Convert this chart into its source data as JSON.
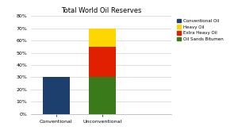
{
  "title": "Total World Oil Reserves",
  "categories": [
    "Conventional",
    "Unconventional"
  ],
  "conventional_value": 30,
  "unconventional_segments": {
    "Oil Sands Bitumen": 30,
    "Extra Heavy Oil": 25,
    "Heavy Oil": 15
  },
  "colors": {
    "Conventional Oil": "#1c3f6e",
    "Heavy Oil": "#ffd700",
    "Extra Heavy Oil": "#e02000",
    "Oil Sands Bitumen": "#3a7a1a"
  },
  "ylim": [
    0,
    80
  ],
  "yticks": [
    0,
    10,
    20,
    30,
    40,
    50,
    60,
    70,
    80
  ],
  "ytick_labels": [
    "0%",
    "10%",
    "20%",
    "30%",
    "40%",
    "50%",
    "60%",
    "70%",
    "80%"
  ],
  "legend_order": [
    "Conventional Oil",
    "Heavy Oil",
    "Extra Heavy Oil",
    "Oil Sands Bitumen"
  ],
  "background_color": "#ffffff",
  "title_fontsize": 6,
  "tick_fontsize": 4.5,
  "legend_fontsize": 4.0,
  "bar_width": 0.6,
  "xlim": [
    -0.55,
    2.5
  ]
}
